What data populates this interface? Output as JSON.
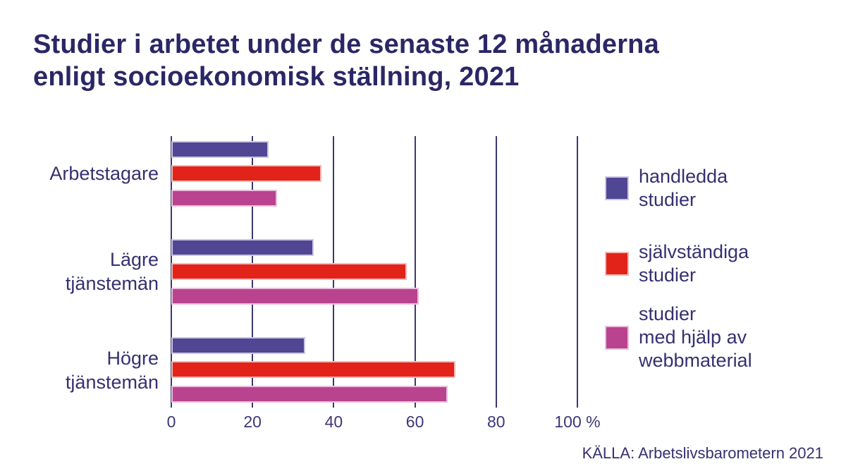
{
  "title": {
    "line1": "Studier i arbetet under de senaste 12 månaderna",
    "line2": "enligt socioekonomisk ställning, 2021"
  },
  "source": "KÄLLA: Arbetslivsbarometern 2021",
  "colors": {
    "title_text": "#2b2766",
    "body_text": "#363070",
    "grid_line": "#3b3970",
    "series_purple": "#514693",
    "series_red": "#e2231a",
    "series_magenta": "#b9438f"
  },
  "chart_data": {
    "type": "bar",
    "orientation": "horizontal",
    "title": "Studier i arbetet under de senaste 12 månaderna enligt socioekonomisk ställning, 2021",
    "categories": [
      "Arbetstagare",
      "Lägre tjänstemän",
      "Högre tjänstemän"
    ],
    "series": [
      {
        "name": "handledda studier",
        "color": "#514693",
        "halo": "#cdc5e5",
        "values": [
          24,
          35,
          33
        ]
      },
      {
        "name": "självständiga studier",
        "color": "#e2231a",
        "halo": "#f5b8b3",
        "values": [
          37,
          58,
          70
        ]
      },
      {
        "name": "studier med hjälp av webbmaterial",
        "color": "#b9438f",
        "halo": "#e9c0dc",
        "values": [
          26,
          61,
          68
        ]
      }
    ],
    "xlim": [
      0,
      100
    ],
    "xticks": [
      0,
      20,
      40,
      60,
      80,
      100
    ],
    "xtick_labels": [
      "0",
      "20",
      "40",
      "60",
      "80",
      "100 %"
    ],
    "unit": "%",
    "grid": "vertical",
    "legend_position": "right"
  },
  "legend": {
    "items": [
      {
        "series": 0,
        "lines": [
          "handledda",
          "studier"
        ]
      },
      {
        "series": 1,
        "lines": [
          "självständiga",
          "studier"
        ]
      },
      {
        "series": 2,
        "lines": [
          "studier",
          "med hjälp av",
          "webbmaterial"
        ]
      }
    ]
  },
  "category_labels": [
    {
      "lines": [
        "Arbetstagare"
      ]
    },
    {
      "lines": [
        "Lägre",
        "tjänstemän"
      ]
    },
    {
      "lines": [
        "Högre",
        "tjänstemän"
      ]
    }
  ]
}
